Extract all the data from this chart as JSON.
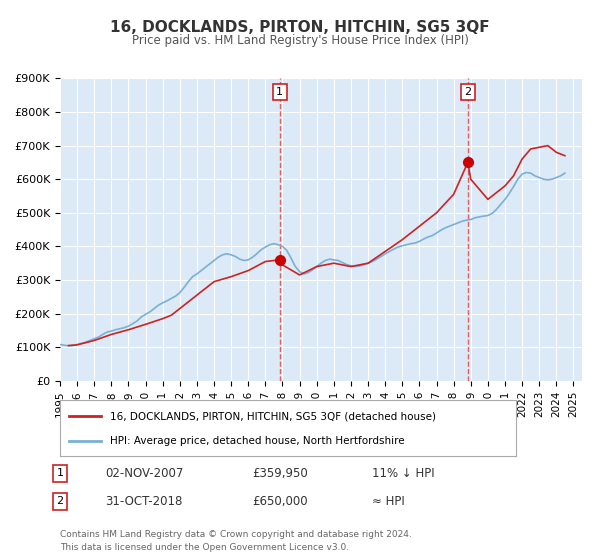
{
  "title": "16, DOCKLANDS, PIRTON, HITCHIN, SG5 3QF",
  "subtitle": "Price paid vs. HM Land Registry's House Price Index (HPI)",
  "background_color": "#ffffff",
  "plot_bg_color": "#dce9f7",
  "grid_color": "#ffffff",
  "ylim": [
    0,
    900000
  ],
  "yticks": [
    0,
    100000,
    200000,
    300000,
    400000,
    500000,
    600000,
    700000,
    800000,
    900000
  ],
  "ytick_labels": [
    "£0",
    "£100K",
    "£200K",
    "£300K",
    "£400K",
    "£500K",
    "£600K",
    "£700K",
    "£800K",
    "£900K"
  ],
  "xlim_start": 1995.0,
  "xlim_end": 2025.5,
  "xtick_years": [
    1995,
    1996,
    1997,
    1998,
    1999,
    2000,
    2001,
    2002,
    2003,
    2004,
    2005,
    2006,
    2007,
    2008,
    2009,
    2010,
    2011,
    2012,
    2013,
    2014,
    2015,
    2016,
    2017,
    2018,
    2019,
    2020,
    2021,
    2022,
    2023,
    2024,
    2025
  ],
  "sale1_x": 2007.84,
  "sale1_y": 359950,
  "sale1_label": "1",
  "sale1_date": "02-NOV-2007",
  "sale1_price": "£359,950",
  "sale1_hpi": "11% ↓ HPI",
  "sale2_x": 2018.83,
  "sale2_y": 650000,
  "sale2_label": "2",
  "sale2_date": "31-OCT-2018",
  "sale2_price": "£650,000",
  "sale2_hpi": "≈ HPI",
  "vline_color": "#e06060",
  "sale_dot_color": "#cc0000",
  "hpi_line_color": "#7ab0d4",
  "price_line_color": "#cc2222",
  "legend_label1": "16, DOCKLANDS, PIRTON, HITCHIN, SG5 3QF (detached house)",
  "legend_label2": "HPI: Average price, detached house, North Hertfordshire",
  "footer1": "Contains HM Land Registry data © Crown copyright and database right 2024.",
  "footer2": "This data is licensed under the Open Government Licence v3.0.",
  "hpi_data_x": [
    1995.0,
    1995.25,
    1995.5,
    1995.75,
    1996.0,
    1996.25,
    1996.5,
    1996.75,
    1997.0,
    1997.25,
    1997.5,
    1997.75,
    1998.0,
    1998.25,
    1998.5,
    1998.75,
    1999.0,
    1999.25,
    1999.5,
    1999.75,
    2000.0,
    2000.25,
    2000.5,
    2000.75,
    2001.0,
    2001.25,
    2001.5,
    2001.75,
    2002.0,
    2002.25,
    2002.5,
    2002.75,
    2003.0,
    2003.25,
    2003.5,
    2003.75,
    2004.0,
    2004.25,
    2004.5,
    2004.75,
    2005.0,
    2005.25,
    2005.5,
    2005.75,
    2006.0,
    2006.25,
    2006.5,
    2006.75,
    2007.0,
    2007.25,
    2007.5,
    2007.75,
    2008.0,
    2008.25,
    2008.5,
    2008.75,
    2009.0,
    2009.25,
    2009.5,
    2009.75,
    2010.0,
    2010.25,
    2010.5,
    2010.75,
    2011.0,
    2011.25,
    2011.5,
    2011.75,
    2012.0,
    2012.25,
    2012.5,
    2012.75,
    2013.0,
    2013.25,
    2013.5,
    2013.75,
    2014.0,
    2014.25,
    2014.5,
    2014.75,
    2015.0,
    2015.25,
    2015.5,
    2015.75,
    2016.0,
    2016.25,
    2016.5,
    2016.75,
    2017.0,
    2017.25,
    2017.5,
    2017.75,
    2018.0,
    2018.25,
    2018.5,
    2018.75,
    2019.0,
    2019.25,
    2019.5,
    2019.75,
    2020.0,
    2020.25,
    2020.5,
    2020.75,
    2021.0,
    2021.25,
    2021.5,
    2021.75,
    2022.0,
    2022.25,
    2022.5,
    2022.75,
    2023.0,
    2023.25,
    2023.5,
    2023.75,
    2024.0,
    2024.25,
    2024.5
  ],
  "hpi_data_y": [
    108000,
    106000,
    104000,
    105000,
    108000,
    111000,
    115000,
    120000,
    125000,
    130000,
    138000,
    145000,
    148000,
    152000,
    155000,
    158000,
    163000,
    170000,
    178000,
    190000,
    198000,
    205000,
    215000,
    225000,
    232000,
    238000,
    245000,
    252000,
    262000,
    278000,
    295000,
    310000,
    318000,
    328000,
    338000,
    348000,
    358000,
    368000,
    375000,
    378000,
    375000,
    370000,
    362000,
    358000,
    360000,
    368000,
    378000,
    390000,
    398000,
    405000,
    408000,
    405000,
    400000,
    388000,
    365000,
    340000,
    325000,
    318000,
    322000,
    330000,
    340000,
    350000,
    358000,
    362000,
    360000,
    358000,
    352000,
    346000,
    342000,
    340000,
    342000,
    345000,
    350000,
    355000,
    362000,
    370000,
    378000,
    385000,
    392000,
    398000,
    402000,
    405000,
    408000,
    410000,
    415000,
    422000,
    428000,
    432000,
    440000,
    448000,
    455000,
    460000,
    465000,
    470000,
    475000,
    478000,
    480000,
    485000,
    488000,
    490000,
    492000,
    498000,
    510000,
    525000,
    540000,
    558000,
    578000,
    600000,
    615000,
    620000,
    618000,
    610000,
    605000,
    600000,
    598000,
    600000,
    605000,
    610000,
    618000
  ],
  "price_data_x": [
    1995.5,
    1996.0,
    1997.0,
    1998.0,
    1999.0,
    2000.0,
    2001.0,
    2001.5,
    2002.0,
    2003.0,
    2004.0,
    2005.0,
    2006.0,
    2007.0,
    2007.84,
    2008.0,
    2009.0,
    2010.0,
    2011.0,
    2012.0,
    2013.0,
    2014.0,
    2015.0,
    2016.0,
    2017.0,
    2018.0,
    2018.83,
    2019.0,
    2020.0,
    2021.0,
    2021.5,
    2022.0,
    2022.5,
    2023.0,
    2023.5,
    2024.0,
    2024.5
  ],
  "price_data_y": [
    105000,
    107000,
    120000,
    138000,
    152000,
    168000,
    185000,
    195000,
    215000,
    255000,
    295000,
    310000,
    328000,
    355000,
    359950,
    345000,
    315000,
    340000,
    350000,
    340000,
    350000,
    385000,
    420000,
    460000,
    500000,
    555000,
    650000,
    600000,
    540000,
    580000,
    610000,
    660000,
    690000,
    695000,
    700000,
    680000,
    670000
  ]
}
